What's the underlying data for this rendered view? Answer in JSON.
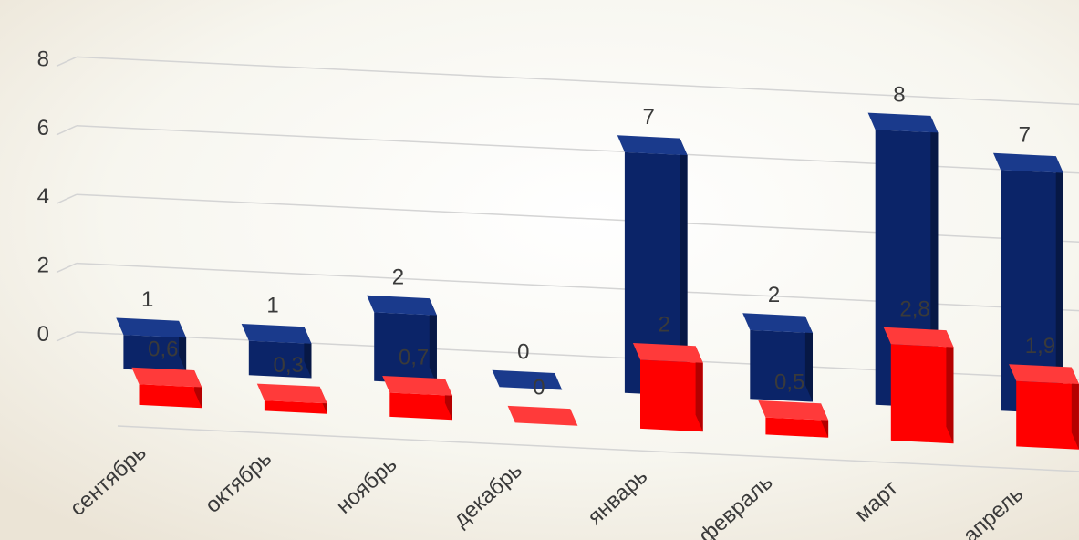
{
  "chart_data": {
    "type": "bar",
    "title": "",
    "xlabel": "",
    "ylabel": "",
    "ylim": [
      0,
      8
    ],
    "yticks": [
      "0",
      "2",
      "4",
      "6",
      "8"
    ],
    "categories": [
      "сентябрь",
      "октябрь",
      "ноябрь",
      "декабрь",
      "январь",
      "февраль",
      "март",
      "апрель"
    ],
    "series": [
      {
        "color": "#FF0000",
        "values": [
          0.6,
          0.3,
          0.7,
          0,
          2,
          0.5,
          2.8,
          1.9
        ],
        "labels": [
          "0,6",
          "0,3",
          "0,7",
          "0",
          "2",
          "0,5",
          "2,8",
          "1,9"
        ]
      },
      {
        "color": "#0B2468",
        "values": [
          1,
          1,
          2,
          0,
          7,
          2,
          8,
          7
        ],
        "labels": [
          "1",
          "1",
          "2",
          "0",
          "7",
          "2",
          "8",
          "7"
        ]
      }
    ],
    "grid": true,
    "legend": "none",
    "style": "3d"
  }
}
